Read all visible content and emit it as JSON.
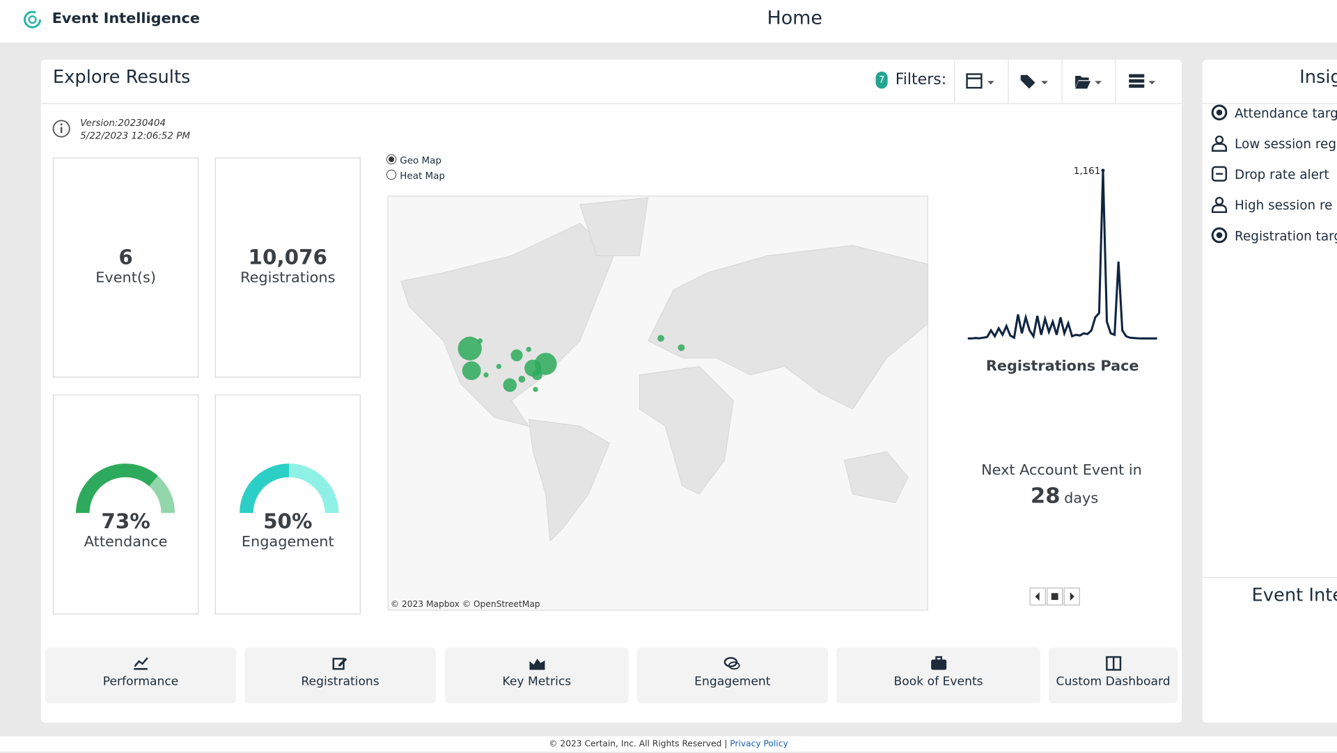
{
  "header": {
    "app_name": "Event Intelligence",
    "page_title": "Home"
  },
  "explore": {
    "title": "Explore Results",
    "filter_count": 7,
    "filters_label": "Filters:",
    "version": "Version:20230404",
    "timestamp": "5/22/2023 12:06:52 PM",
    "kpis": [
      {
        "value": 6,
        "label": "Event(s)"
      },
      {
        "value": 10076,
        "value_label": "10,076",
        "label": "Registrations"
      }
    ],
    "gauges": [
      {
        "value": 73,
        "value_label": "73%",
        "label": "Attendance"
      },
      {
        "value": 50,
        "value_label": "50%",
        "label": "Engagement"
      }
    ],
    "map": {
      "options": [
        "Geo Map",
        "Heat Map"
      ],
      "selected": 0,
      "attribution": "© 2023 Mapbox © OpenStreetMap"
    },
    "pace": {
      "title": "Registrations Pace",
      "values": [
        5,
        5,
        8,
        6,
        10,
        15,
        60,
        20,
        75,
        30,
        90,
        25,
        10,
        170,
        40,
        150,
        60,
        20,
        160,
        30,
        140,
        50,
        120,
        30,
        150,
        40,
        110,
        20,
        30,
        25,
        40,
        35,
        60,
        150,
        180,
        1161,
        120,
        40,
        30,
        534,
        60,
        20,
        10,
        8,
        6,
        5,
        5,
        5,
        5,
        5
      ],
      "peak_label": "1,161"
    },
    "next_event": {
      "label": "Next Account Event in",
      "count": 28,
      "unit": "days"
    },
    "nav": [
      "Performance",
      "Registrations",
      "Key Metrics",
      "Engagement",
      "Book of Events",
      "Custom Dashboard"
    ]
  },
  "insights": {
    "title": "Insig",
    "items": [
      "Attendance targ",
      "Low session reg",
      "Drop rate alert",
      "High session re",
      "Registration targ"
    ],
    "side_title": "Event Inte"
  },
  "footer": {
    "copyright": "© 2023 Certain, Inc. All Rights Reserved |",
    "link": "Privacy Policy"
  }
}
